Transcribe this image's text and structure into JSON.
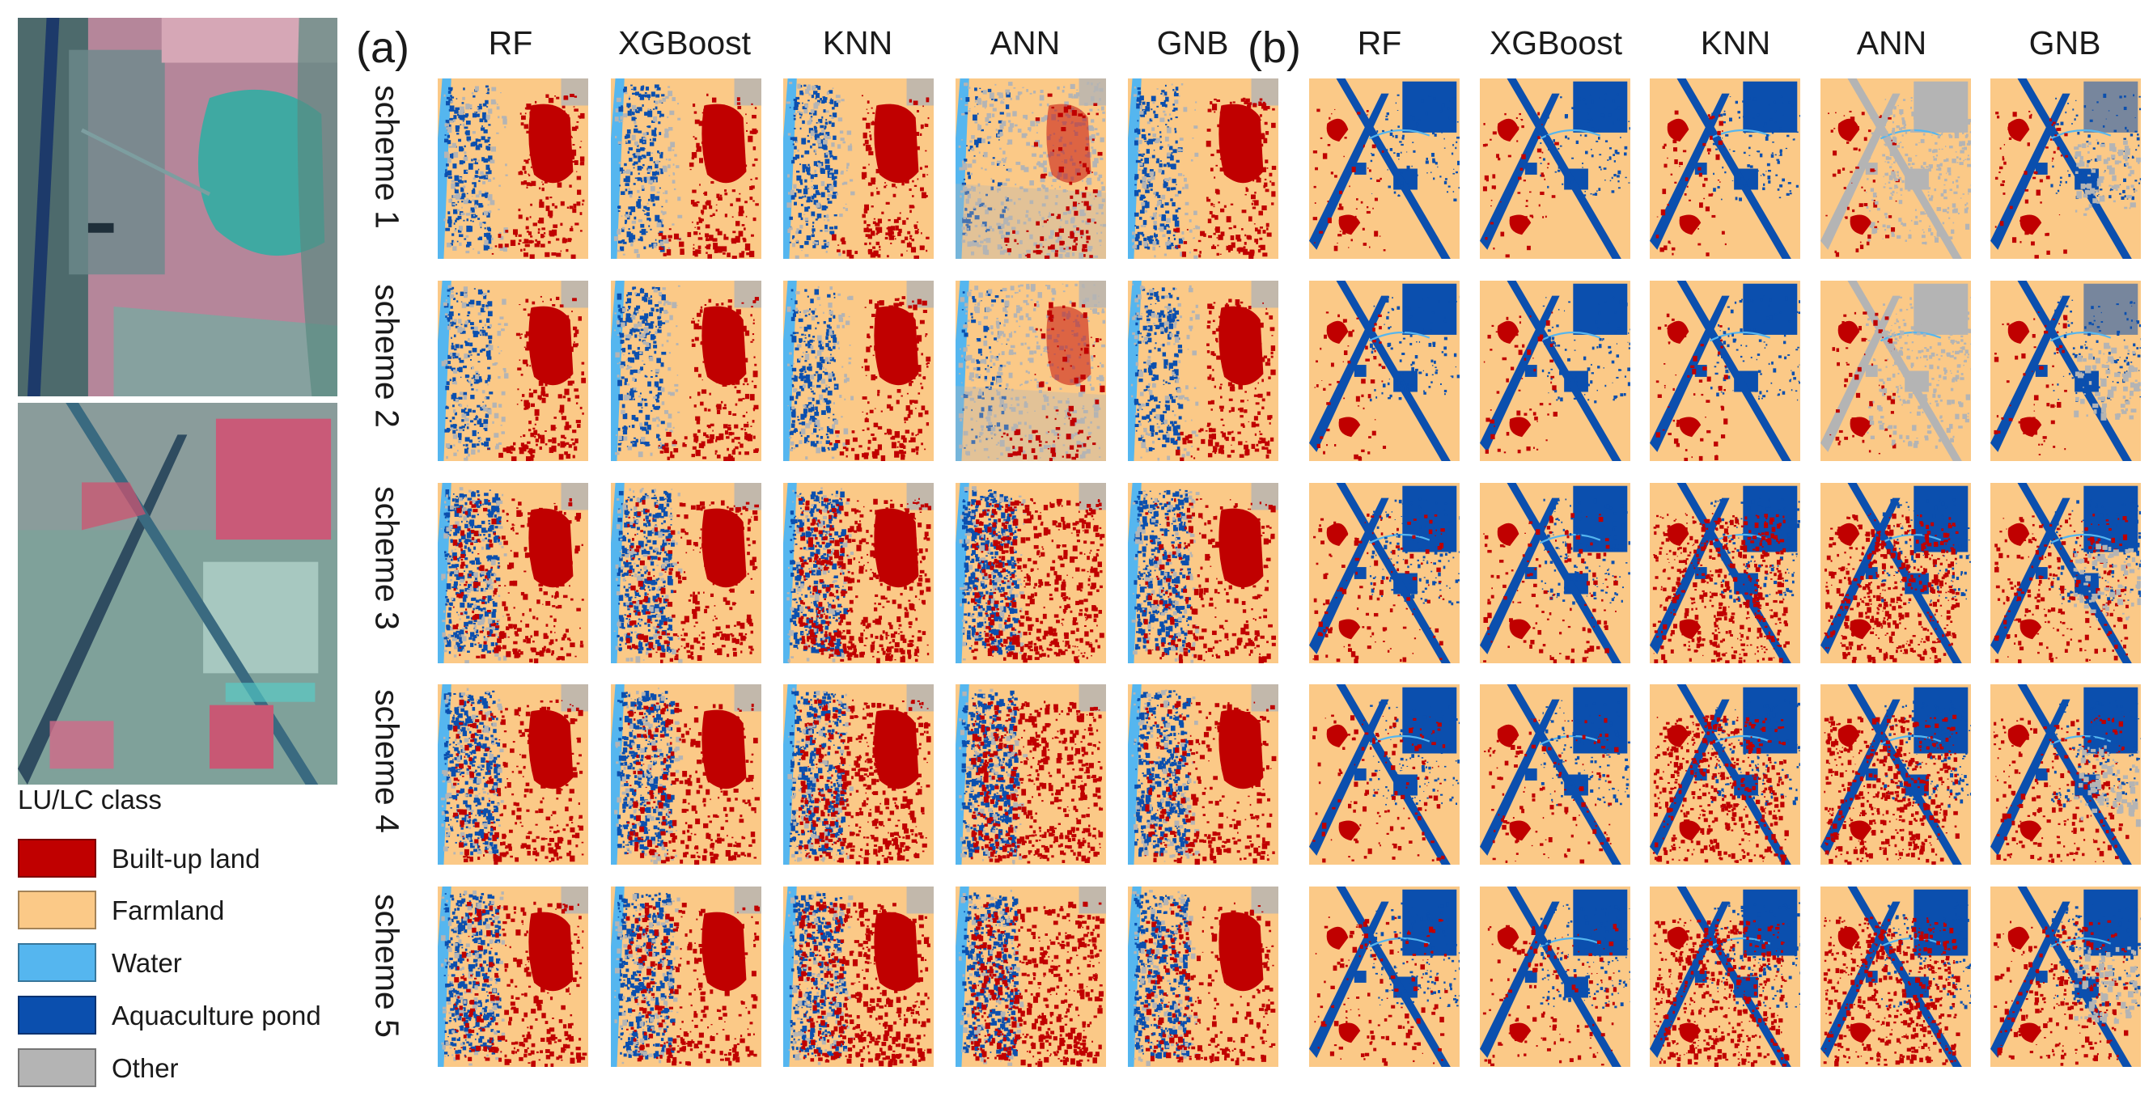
{
  "panels": {
    "a": {
      "label": "(a)"
    },
    "b": {
      "label": "(b)"
    }
  },
  "models": [
    "RF",
    "XGBoost",
    "KNN",
    "ANN",
    "GNB"
  ],
  "schemes": [
    "scheme 1",
    "scheme 2",
    "scheme 3",
    "scheme 4",
    "scheme 5"
  ],
  "legend": {
    "title": "LU/LC class",
    "items": [
      {
        "label": "Built-up land",
        "color": "#c00000"
      },
      {
        "label": "Farmland",
        "color": "#fbc987"
      },
      {
        "label": "Water",
        "color": "#55b6ef"
      },
      {
        "label": "Aquaculture pond",
        "color": "#0b4fae"
      },
      {
        "label": "Other",
        "color": "#b4b4b4"
      }
    ]
  },
  "colors": {
    "built_up": "#c00000",
    "farmland": "#fbc987",
    "water": "#55b6ef",
    "aquaculture": "#0b4fae",
    "other": "#b4b4b4"
  }
}
